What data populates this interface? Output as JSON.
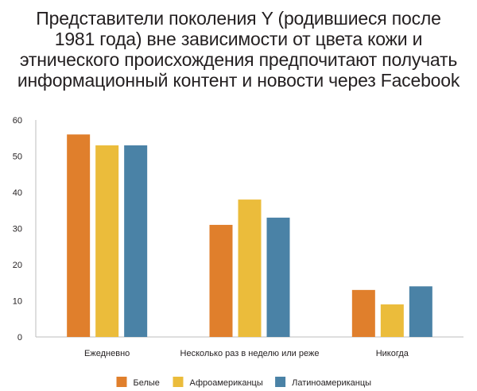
{
  "chart_data": {
    "type": "bar",
    "title": "Представители поколения Y (родившиеся после 1981 года) вне зависимости от цвета кожи и этнического происхождения предпочитают получать информационный контент и новости через Facebook",
    "categories": [
      "Ежедневно",
      "Несколько раз в неделю или реже",
      "Никогда"
    ],
    "series": [
      {
        "name": "Белые",
        "color": "#e07f2c",
        "values": [
          56,
          31,
          13
        ]
      },
      {
        "name": "Афроамериканцы",
        "color": "#ebbc3b",
        "values": [
          53,
          38,
          9
        ]
      },
      {
        "name": "Латиноамериканцы",
        "color": "#4a82a6",
        "values": [
          53,
          33,
          14
        ]
      }
    ],
    "ylim": [
      0,
      60
    ],
    "yticks": [
      0,
      10,
      20,
      30,
      40,
      50,
      60
    ],
    "xlabel": "",
    "ylabel": "",
    "grid": false,
    "legend_position": "bottom"
  }
}
